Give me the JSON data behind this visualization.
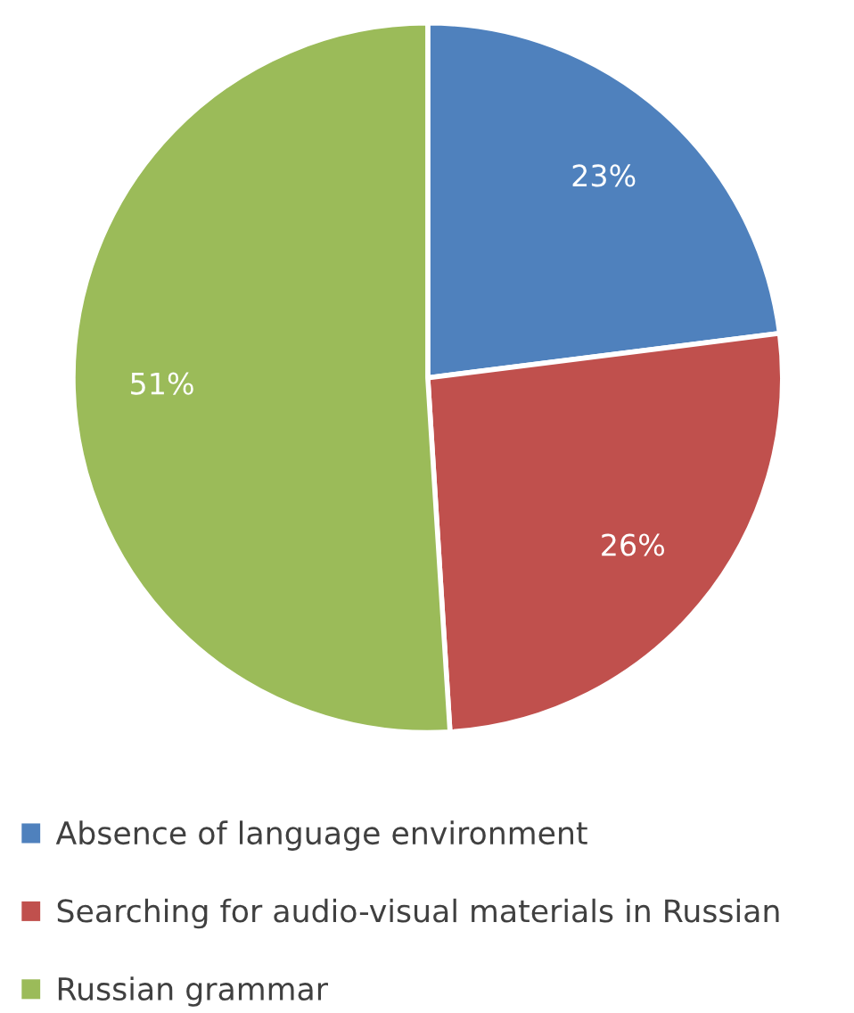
{
  "chart_data": {
    "type": "pie",
    "categories": [
      "Absence of language environment",
      "Searching for audio-visual materials in Russian",
      "Russian grammar"
    ],
    "values": [
      23,
      26,
      51
    ],
    "colors": [
      "#4f81bd",
      "#c0504d",
      "#9bbb59"
    ],
    "value_labels": [
      "23%",
      "26%",
      "51%"
    ],
    "legend": "bottom"
  }
}
